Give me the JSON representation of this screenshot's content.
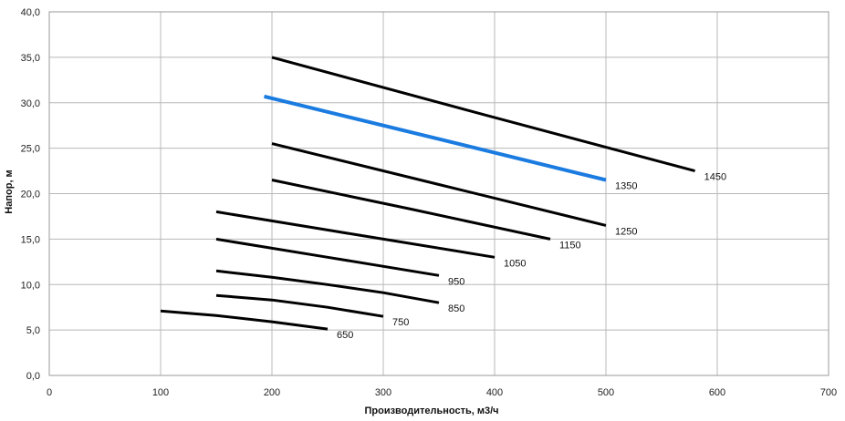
{
  "chart_data": {
    "type": "line",
    "xlabel": "Производительность,  м3/ч",
    "ylabel": "Напор, м",
    "xlim": [
      0,
      700
    ],
    "ylim": [
      0,
      40
    ],
    "x_ticks": [
      "0",
      "100",
      "200",
      "300",
      "400",
      "500",
      "600",
      "700"
    ],
    "y_ticks": [
      "0,0",
      "5,0",
      "10,0",
      "15,0",
      "20,0",
      "25,0",
      "30,0",
      "35,0",
      "40,0"
    ],
    "grid": true,
    "legend": "none",
    "colors": {
      "default": "#000000",
      "highlight": "#1a7be0"
    },
    "series": [
      {
        "name": "650",
        "points": [
          [
            100,
            7.1
          ],
          [
            150,
            6.6
          ],
          [
            200,
            5.9
          ],
          [
            250,
            5.1
          ]
        ]
      },
      {
        "name": "750",
        "points": [
          [
            150,
            8.8
          ],
          [
            200,
            8.3
          ],
          [
            250,
            7.5
          ],
          [
            300,
            6.5
          ]
        ]
      },
      {
        "name": "850",
        "points": [
          [
            150,
            11.5
          ],
          [
            200,
            10.8
          ],
          [
            250,
            10.0
          ],
          [
            300,
            9.1
          ],
          [
            350,
            8.0
          ]
        ]
      },
      {
        "name": "950",
        "points": [
          [
            150,
            15.0
          ],
          [
            250,
            13.0
          ],
          [
            350,
            11.0
          ]
        ]
      },
      {
        "name": "1050",
        "points": [
          [
            150,
            18.0
          ],
          [
            275,
            15.5
          ],
          [
            400,
            13.0
          ]
        ]
      },
      {
        "name": "1150",
        "points": [
          [
            200,
            21.5
          ],
          [
            325,
            18.3
          ],
          [
            450,
            15.0
          ]
        ]
      },
      {
        "name": "1250",
        "points": [
          [
            200,
            25.5
          ],
          [
            350,
            21.0
          ],
          [
            500,
            16.5
          ]
        ]
      },
      {
        "name": "1350",
        "points": [
          [
            193,
            30.7
          ],
          [
            347,
            26.1
          ],
          [
            500,
            21.5
          ]
        ],
        "highlight": true
      },
      {
        "name": "1450",
        "points": [
          [
            200,
            35.0
          ],
          [
            390,
            28.7
          ],
          [
            580,
            22.5
          ]
        ]
      }
    ]
  }
}
